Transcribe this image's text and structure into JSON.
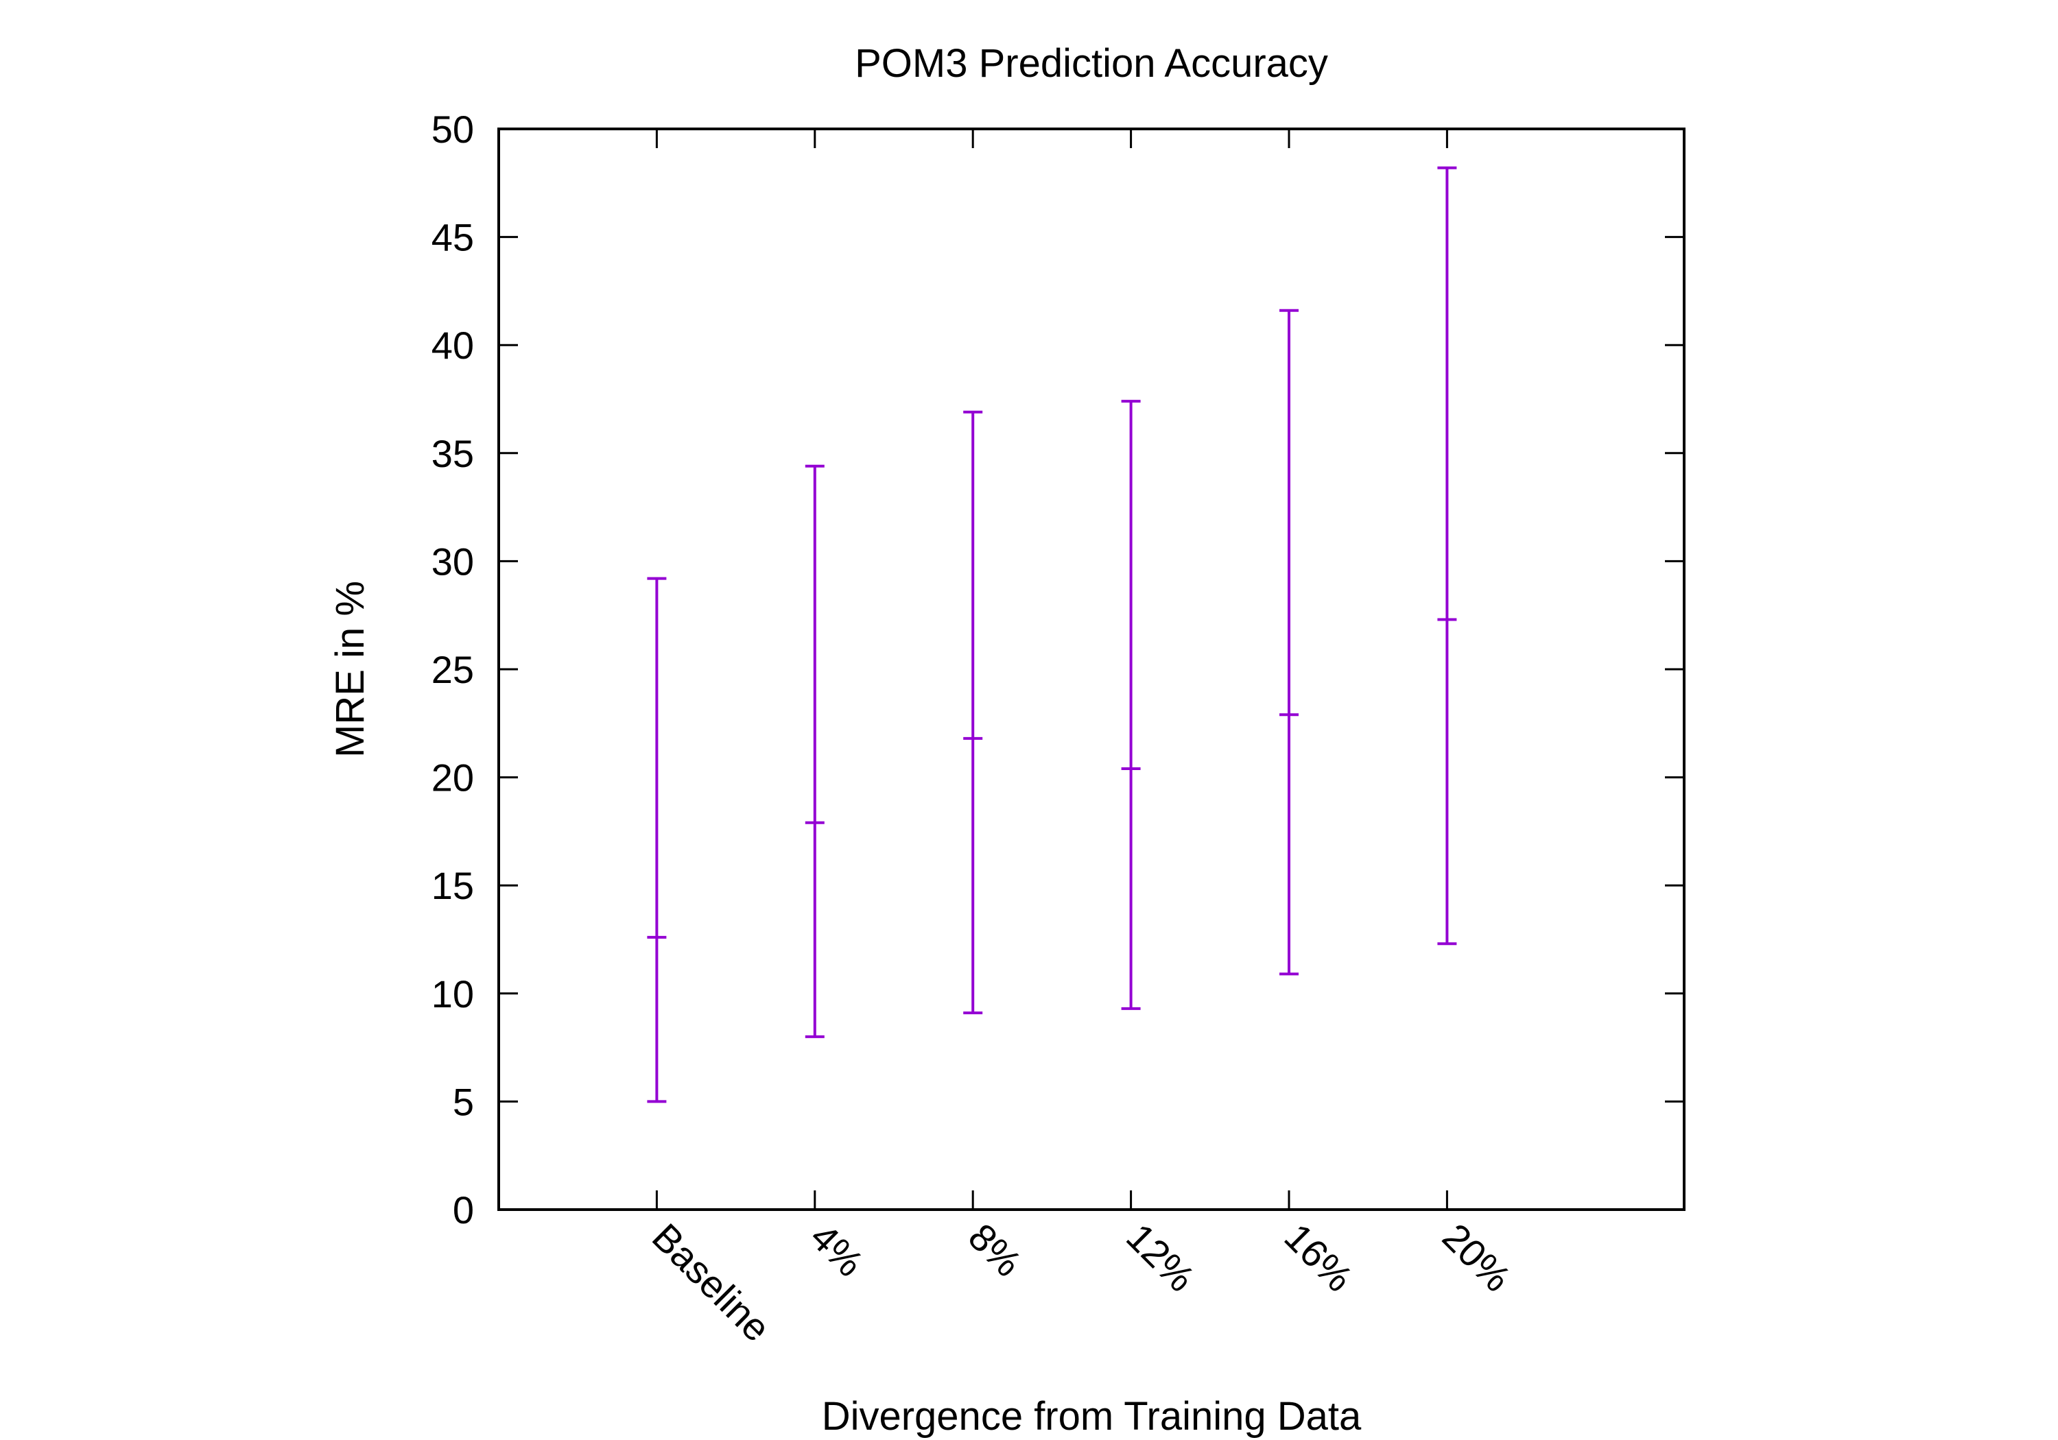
{
  "chart_data": {
    "type": "errorbar",
    "title": "POM3 Prediction Accuracy",
    "xlabel": "Divergence from Training Data",
    "ylabel": "MRE in %",
    "ylim": [
      0,
      50
    ],
    "yticks": [
      0,
      5,
      10,
      15,
      20,
      25,
      30,
      35,
      40,
      45,
      50
    ],
    "categories": [
      "Baseline",
      "4%",
      "8%",
      "12%",
      "16%",
      "20%"
    ],
    "x_label_rotation_deg": 45,
    "grid": false,
    "legend": "none",
    "series": [
      {
        "color": "#9400d3",
        "mean": [
          12.6,
          17.9,
          21.8,
          20.4,
          22.9,
          27.3
        ],
        "lower": [
          5.0,
          8.0,
          9.1,
          9.3,
          10.9,
          12.3
        ],
        "upper": [
          29.2,
          34.4,
          36.9,
          37.4,
          41.6,
          48.2
        ]
      }
    ]
  }
}
